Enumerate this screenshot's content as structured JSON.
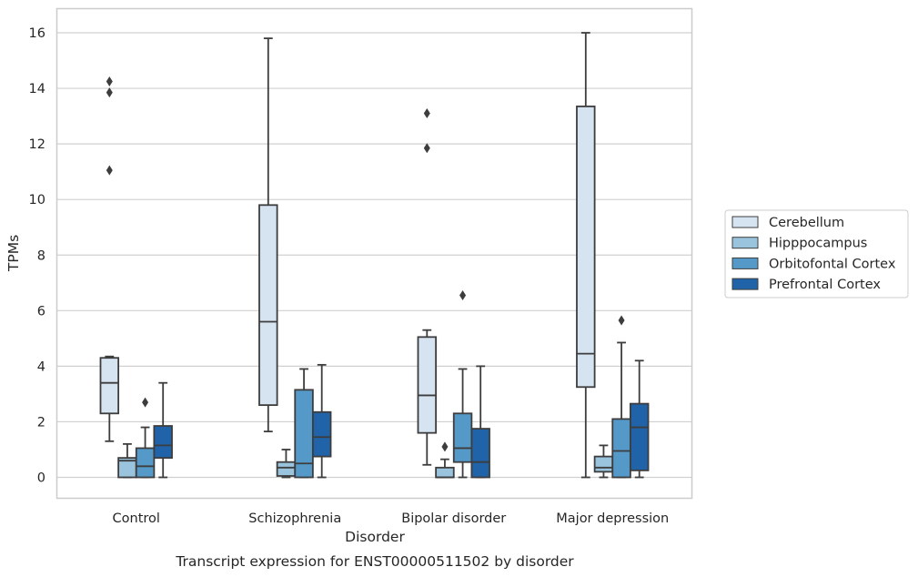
{
  "chart_data": {
    "type": "box",
    "caption": "Transcript expression for ENST00000511502 by disorder",
    "xlabel": "Disorder",
    "ylabel": "TPMs",
    "ylim": [
      -0.75,
      16.8
    ],
    "yticks": [
      0,
      2,
      4,
      6,
      8,
      10,
      12,
      14,
      16
    ],
    "categories": [
      "Control",
      "Schizophrenia",
      "Bipolar disorder",
      "Major depression"
    ],
    "grid": "horizontal",
    "legend_position": "right",
    "series": [
      {
        "name": "Cerebellum",
        "color": "#d6e3f1",
        "boxes": [
          {
            "whisker_low": 1.3,
            "q1": 2.3,
            "median": 3.4,
            "q3": 4.3,
            "whisker_high": 4.35,
            "outliers": [
              11.05,
              13.85,
              14.25
            ]
          },
          {
            "whisker_low": 1.65,
            "q1": 2.6,
            "median": 5.6,
            "q3": 9.8,
            "whisker_high": 15.8,
            "outliers": []
          },
          {
            "whisker_low": 0.45,
            "q1": 1.6,
            "median": 2.95,
            "q3": 5.05,
            "whisker_high": 5.3,
            "outliers": [
              11.85,
              13.1
            ]
          },
          {
            "whisker_low": 0.0,
            "q1": 3.25,
            "median": 4.45,
            "q3": 13.35,
            "whisker_high": 16.0,
            "outliers": []
          }
        ]
      },
      {
        "name": "Hipppocampus",
        "color": "#9ac3dd",
        "boxes": [
          {
            "whisker_low": 0.0,
            "q1": 0.0,
            "median": 0.6,
            "q3": 0.7,
            "whisker_high": 1.2,
            "outliers": []
          },
          {
            "whisker_low": 0.0,
            "q1": 0.05,
            "median": 0.35,
            "q3": 0.55,
            "whisker_high": 1.0,
            "outliers": []
          },
          {
            "whisker_low": 0.0,
            "q1": 0.0,
            "median": 0.0,
            "q3": 0.35,
            "whisker_high": 0.65,
            "outliers": [
              1.1
            ]
          },
          {
            "whisker_low": 0.0,
            "q1": 0.2,
            "median": 0.35,
            "q3": 0.75,
            "whisker_high": 1.15,
            "outliers": []
          }
        ]
      },
      {
        "name": "Orbitofontal Cortex",
        "color": "#5599c8",
        "boxes": [
          {
            "whisker_low": 0.0,
            "q1": 0.0,
            "median": 0.4,
            "q3": 1.05,
            "whisker_high": 1.8,
            "outliers": [
              2.7
            ]
          },
          {
            "whisker_low": 0.0,
            "q1": 0.0,
            "median": 0.5,
            "q3": 3.15,
            "whisker_high": 3.9,
            "outliers": []
          },
          {
            "whisker_low": 0.0,
            "q1": 0.55,
            "median": 1.05,
            "q3": 2.3,
            "whisker_high": 3.9,
            "outliers": [
              6.55
            ]
          },
          {
            "whisker_low": 0.0,
            "q1": 0.0,
            "median": 0.95,
            "q3": 2.1,
            "whisker_high": 4.85,
            "outliers": [
              5.65
            ]
          }
        ]
      },
      {
        "name": "Prefrontal Cortex",
        "color": "#2163a8",
        "boxes": [
          {
            "whisker_low": 0.0,
            "q1": 0.7,
            "median": 1.15,
            "q3": 1.85,
            "whisker_high": 3.4,
            "outliers": []
          },
          {
            "whisker_low": 0.0,
            "q1": 0.75,
            "median": 1.45,
            "q3": 2.35,
            "whisker_high": 4.05,
            "outliers": []
          },
          {
            "whisker_low": 0.0,
            "q1": 0.0,
            "median": 0.55,
            "q3": 1.75,
            "whisker_high": 4.0,
            "outliers": []
          },
          {
            "whisker_low": 0.0,
            "q1": 0.25,
            "median": 1.8,
            "q3": 2.65,
            "whisker_high": 4.2,
            "outliers": []
          }
        ]
      }
    ]
  }
}
